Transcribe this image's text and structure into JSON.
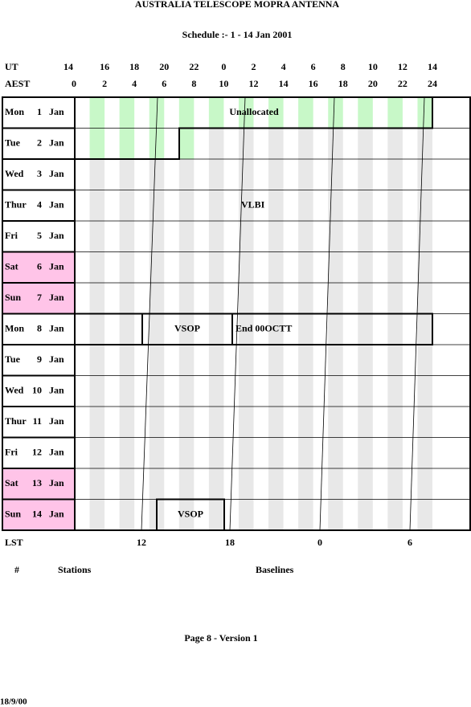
{
  "header": {
    "title": "AUSTRALIA TELESCOPE MOPRA ANTENNA",
    "subtitle": "Schedule :- 1 - 14 Jan 2001"
  },
  "ut_row": {
    "label": "UT",
    "ticks": [
      "14",
      "16",
      "18",
      "20",
      "22",
      "0",
      "2",
      "4",
      "6",
      "8",
      "10",
      "12",
      "14"
    ]
  },
  "aest_row": {
    "label": "AEST",
    "ticks": [
      "0",
      "2",
      "4",
      "6",
      "8",
      "10",
      "12",
      "14",
      "16",
      "18",
      "20",
      "22",
      "24"
    ]
  },
  "days": [
    {
      "name": "Mon",
      "date": "1",
      "month": "Jan",
      "color": "#ffffff"
    },
    {
      "name": "Tue",
      "date": "2",
      "month": "Jan",
      "color": "#ffffff"
    },
    {
      "name": "Wed",
      "date": "3",
      "month": "Jan",
      "color": "#ffffff"
    },
    {
      "name": "Thur",
      "date": "4",
      "month": "Jan",
      "color": "#ffffff"
    },
    {
      "name": "Fri",
      "date": "5",
      "month": "Jan",
      "color": "#ffffff"
    },
    {
      "name": "Sat",
      "date": "6",
      "month": "Jan",
      "color": "#ffc4e8"
    },
    {
      "name": "Sun",
      "date": "7",
      "month": "Jan",
      "color": "#ffc4e8"
    },
    {
      "name": "Mon",
      "date": "8",
      "month": "Jan",
      "color": "#ffffff"
    },
    {
      "name": "Tue",
      "date": "9",
      "month": "Jan",
      "color": "#ffffff"
    },
    {
      "name": "Wed",
      "date": "10",
      "month": "Jan",
      "color": "#ffffff"
    },
    {
      "name": "Thur",
      "date": "11",
      "month": "Jan",
      "color": "#ffffff"
    },
    {
      "name": "Fri",
      "date": "12",
      "month": "Jan",
      "color": "#ffffff"
    },
    {
      "name": "Sat",
      "date": "13",
      "month": "Jan",
      "color": "#ffc4e8"
    },
    {
      "name": "Sun",
      "date": "14",
      "month": "Jan",
      "color": "#ffc4e8"
    }
  ],
  "blocks": [
    "Unallocated",
    "VLBI",
    "VSOP",
    "End 00OCTT",
    "VSOP"
  ],
  "lst_row": {
    "label": "LST",
    "ticks": [
      "12",
      "18",
      "0",
      "6"
    ]
  },
  "footer": {
    "columns": [
      "#",
      "Stations",
      "Baselines"
    ],
    "page": "Page 8 - Version 1",
    "date": "18/9/00"
  }
}
